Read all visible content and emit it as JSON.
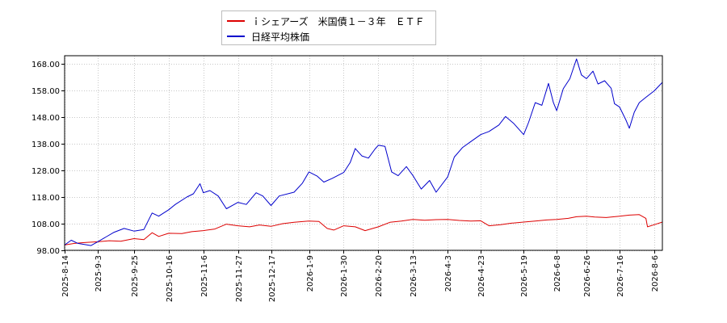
{
  "chart_data": {
    "type": "line",
    "ylim": [
      98,
      171
    ],
    "yticks": [
      "98.00",
      "108.00",
      "118.00",
      "128.00",
      "138.00",
      "148.00",
      "158.00",
      "168.00"
    ],
    "ytick_values": [
      98,
      108,
      118,
      128,
      138,
      148,
      158,
      168
    ],
    "xlim": [
      "2025-08-14",
      "2026-08-11"
    ],
    "xticks": [
      "2025-8-14",
      "2025-9-3",
      "2025-9-25",
      "2025-10-16",
      "2025-11-6",
      "2025-11-27",
      "2025-12-17",
      "2026-1-9",
      "2026-1-30",
      "2026-2-20",
      "2026-3-13",
      "2026-4-3",
      "2026-4-23",
      "2026-5-19",
      "2026-6-8",
      "2026-6-26",
      "2026-7-16",
      "2026-8-6"
    ],
    "grid": true,
    "legend_position": "top-center",
    "series": [
      {
        "name": "ｉシェアーズ　米国債１－３年　ＥＴＦ",
        "color": "#dd0000",
        "points": [
          [
            "2025-08-14",
            100.0
          ],
          [
            "2025-08-20",
            100.6
          ],
          [
            "2025-08-26",
            100.9
          ],
          [
            "2025-09-03",
            101.2
          ],
          [
            "2025-09-10",
            101.6
          ],
          [
            "2025-09-17",
            101.4
          ],
          [
            "2025-09-25",
            102.4
          ],
          [
            "2025-10-01",
            102.0
          ],
          [
            "2025-10-06",
            104.6
          ],
          [
            "2025-10-10",
            103.2
          ],
          [
            "2025-10-16",
            104.4
          ],
          [
            "2025-10-24",
            104.3
          ],
          [
            "2025-10-30",
            105.0
          ],
          [
            "2025-11-06",
            105.4
          ],
          [
            "2025-11-13",
            106.0
          ],
          [
            "2025-11-20",
            107.8
          ],
          [
            "2025-11-27",
            107.2
          ],
          [
            "2025-12-04",
            106.8
          ],
          [
            "2025-12-10",
            107.5
          ],
          [
            "2025-12-17",
            107.0
          ],
          [
            "2025-12-24",
            108.0
          ],
          [
            "2025-12-31",
            108.5
          ],
          [
            "2026-01-09",
            109.0
          ],
          [
            "2026-01-15",
            108.8
          ],
          [
            "2026-01-20",
            106.2
          ],
          [
            "2026-01-24",
            105.6
          ],
          [
            "2026-01-30",
            107.2
          ],
          [
            "2026-02-06",
            106.8
          ],
          [
            "2026-02-12",
            105.4
          ],
          [
            "2026-02-20",
            106.8
          ],
          [
            "2026-02-27",
            108.5
          ],
          [
            "2026-03-06",
            109.0
          ],
          [
            "2026-03-13",
            109.6
          ],
          [
            "2026-03-20",
            109.3
          ],
          [
            "2026-03-27",
            109.5
          ],
          [
            "2026-04-03",
            109.6
          ],
          [
            "2026-04-10",
            109.2
          ],
          [
            "2026-04-17",
            109.0
          ],
          [
            "2026-04-23",
            109.1
          ],
          [
            "2026-04-28",
            107.2
          ],
          [
            "2026-05-05",
            107.6
          ],
          [
            "2026-05-12",
            108.2
          ],
          [
            "2026-05-19",
            108.6
          ],
          [
            "2026-05-26",
            109.0
          ],
          [
            "2026-06-02",
            109.4
          ],
          [
            "2026-06-08",
            109.6
          ],
          [
            "2026-06-15",
            110.0
          ],
          [
            "2026-06-20",
            110.6
          ],
          [
            "2026-06-26",
            110.8
          ],
          [
            "2026-07-01",
            110.5
          ],
          [
            "2026-07-08",
            110.3
          ],
          [
            "2026-07-16",
            110.8
          ],
          [
            "2026-07-22",
            111.2
          ],
          [
            "2026-07-28",
            111.4
          ],
          [
            "2026-08-01",
            110.0
          ],
          [
            "2026-08-02",
            106.8
          ],
          [
            "2026-08-06",
            107.6
          ],
          [
            "2026-08-11",
            108.6
          ]
        ]
      },
      {
        "name": "日経平均株価",
        "color": "#0000cc",
        "points": [
          [
            "2025-08-14",
            100.0
          ],
          [
            "2025-08-18",
            101.8
          ],
          [
            "2025-08-22",
            100.6
          ],
          [
            "2025-08-26",
            100.2
          ],
          [
            "2025-08-30",
            99.8
          ],
          [
            "2025-09-03",
            101.2
          ],
          [
            "2025-09-08",
            103.0
          ],
          [
            "2025-09-13",
            104.8
          ],
          [
            "2025-09-19",
            106.2
          ],
          [
            "2025-09-25",
            105.2
          ],
          [
            "2025-10-01",
            105.8
          ],
          [
            "2025-10-06",
            112.0
          ],
          [
            "2025-10-10",
            110.8
          ],
          [
            "2025-10-16",
            113.2
          ],
          [
            "2025-10-20",
            115.2
          ],
          [
            "2025-10-27",
            118.0
          ],
          [
            "2025-10-31",
            119.2
          ],
          [
            "2025-11-04",
            123.0
          ],
          [
            "2025-11-06",
            119.6
          ],
          [
            "2025-11-10",
            120.4
          ],
          [
            "2025-11-15",
            118.4
          ],
          [
            "2025-11-20",
            113.6
          ],
          [
            "2025-11-27",
            116.0
          ],
          [
            "2025-12-02",
            115.2
          ],
          [
            "2025-12-08",
            119.6
          ],
          [
            "2025-12-12",
            118.4
          ],
          [
            "2025-12-17",
            114.8
          ],
          [
            "2025-12-22",
            118.4
          ],
          [
            "2025-12-31",
            119.8
          ],
          [
            "2026-01-05",
            123.2
          ],
          [
            "2026-01-09",
            127.4
          ],
          [
            "2026-01-14",
            125.8
          ],
          [
            "2026-01-18",
            123.6
          ],
          [
            "2026-01-23",
            125.0
          ],
          [
            "2026-01-30",
            127.2
          ],
          [
            "2026-02-03",
            131.0
          ],
          [
            "2026-02-06",
            136.2
          ],
          [
            "2026-02-10",
            133.4
          ],
          [
            "2026-02-14",
            132.6
          ],
          [
            "2026-02-18",
            136.0
          ],
          [
            "2026-02-20",
            137.4
          ],
          [
            "2026-02-24",
            137.0
          ],
          [
            "2026-02-28",
            127.4
          ],
          [
            "2026-03-04",
            126.0
          ],
          [
            "2026-03-09",
            129.4
          ],
          [
            "2026-03-13",
            126.0
          ],
          [
            "2026-03-18",
            121.0
          ],
          [
            "2026-03-23",
            124.2
          ],
          [
            "2026-03-27",
            119.8
          ],
          [
            "2026-04-03",
            125.6
          ],
          [
            "2026-04-07",
            133.0
          ],
          [
            "2026-04-12",
            136.6
          ],
          [
            "2026-04-17",
            138.8
          ],
          [
            "2026-04-23",
            141.4
          ],
          [
            "2026-04-28",
            142.6
          ],
          [
            "2026-05-04",
            145.0
          ],
          [
            "2026-05-08",
            148.2
          ],
          [
            "2026-05-13",
            145.6
          ],
          [
            "2026-05-19",
            141.4
          ],
          [
            "2026-05-22",
            146.0
          ],
          [
            "2026-05-26",
            153.4
          ],
          [
            "2026-05-30",
            152.4
          ],
          [
            "2026-06-03",
            160.6
          ],
          [
            "2026-06-06",
            153.4
          ],
          [
            "2026-06-08",
            150.4
          ],
          [
            "2026-06-12",
            158.6
          ],
          [
            "2026-06-16",
            162.4
          ],
          [
            "2026-06-20",
            169.8
          ],
          [
            "2026-06-23",
            163.8
          ],
          [
            "2026-06-26",
            162.4
          ],
          [
            "2026-06-30",
            165.2
          ],
          [
            "2026-07-03",
            160.4
          ],
          [
            "2026-07-07",
            161.6
          ],
          [
            "2026-07-11",
            158.8
          ],
          [
            "2026-07-13",
            153.0
          ],
          [
            "2026-07-16",
            151.8
          ],
          [
            "2026-07-20",
            146.8
          ],
          [
            "2026-07-22",
            143.8
          ],
          [
            "2026-07-25",
            149.8
          ],
          [
            "2026-07-28",
            153.4
          ],
          [
            "2026-08-01",
            155.4
          ],
          [
            "2026-08-06",
            157.8
          ],
          [
            "2026-08-11",
            161.0
          ]
        ]
      }
    ]
  }
}
